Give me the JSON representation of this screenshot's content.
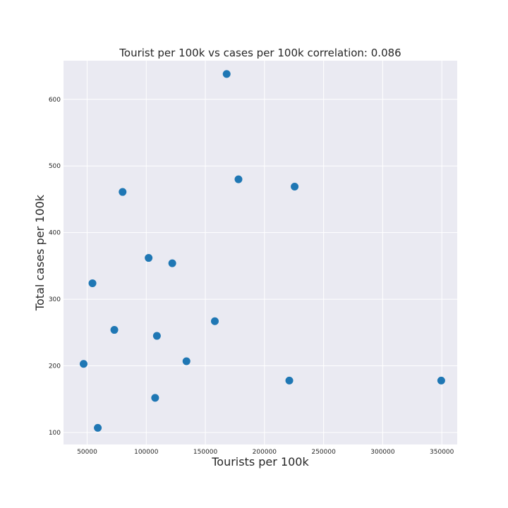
{
  "chart_data": {
    "type": "scatter",
    "title": "Tourist per 100k vs cases per 100k correlation: 0.086",
    "xlabel": "Tourists per 100k",
    "ylabel": "Total cases per 100k",
    "xlim": [
      30000,
      363000
    ],
    "ylim": [
      82,
      658
    ],
    "xticks": [
      50000,
      100000,
      150000,
      200000,
      250000,
      300000,
      350000
    ],
    "yticks": [
      100,
      200,
      300,
      400,
      500,
      600
    ],
    "grid": true,
    "background": "#eaeaf2",
    "grid_color": "#ffffff",
    "point_color": "#1f77b4",
    "points": [
      {
        "x": 47000,
        "y": 203
      },
      {
        "x": 54500,
        "y": 324
      },
      {
        "x": 59000,
        "y": 107
      },
      {
        "x": 73000,
        "y": 254
      },
      {
        "x": 80000,
        "y": 461
      },
      {
        "x": 102000,
        "y": 362
      },
      {
        "x": 107500,
        "y": 152
      },
      {
        "x": 109000,
        "y": 245
      },
      {
        "x": 122000,
        "y": 354
      },
      {
        "x": 134000,
        "y": 207
      },
      {
        "x": 158000,
        "y": 267
      },
      {
        "x": 168000,
        "y": 638
      },
      {
        "x": 178000,
        "y": 480
      },
      {
        "x": 221000,
        "y": 178
      },
      {
        "x": 225500,
        "y": 469
      },
      {
        "x": 349500,
        "y": 178
      }
    ]
  }
}
